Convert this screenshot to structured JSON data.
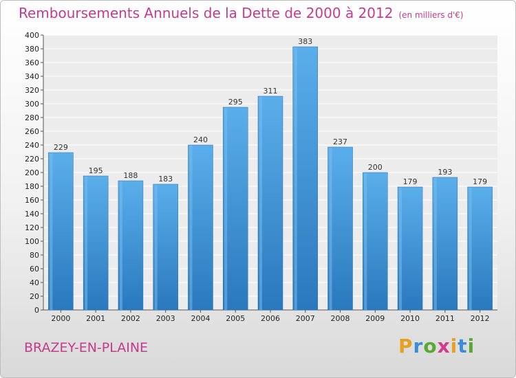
{
  "title": "Remboursements Annuels de la Dette de 2000 à 2012",
  "subtitle": "(en milliers d'€)",
  "city": "BRAZEY-EN-PLAINE",
  "brand": {
    "letters": [
      "P",
      "r",
      "o",
      "x",
      "i",
      "t",
      "i"
    ],
    "colors": [
      "#e8a020",
      "#3a8ed8",
      "#5aa832",
      "#d63a8c",
      "#e8a020",
      "#3a8ed8",
      "#5aa832"
    ]
  },
  "colors": {
    "bar": "#3f97dc",
    "bar_dark": "#2e7fc4",
    "title": "#c53a8c"
  },
  "chart_data": {
    "type": "bar",
    "categories": [
      "2000",
      "2001",
      "2002",
      "2003",
      "2004",
      "2005",
      "2006",
      "2007",
      "2008",
      "2009",
      "2010",
      "2011",
      "2012"
    ],
    "values": [
      229,
      195,
      188,
      183,
      240,
      295,
      311,
      383,
      237,
      200,
      179,
      193,
      179
    ],
    "title": "Remboursements Annuels de la Dette de 2000 à 2012",
    "xlabel": "",
    "ylabel": "",
    "ylim": [
      0,
      400
    ],
    "ytick_step": 20,
    "grid": true,
    "data_labels": true
  }
}
